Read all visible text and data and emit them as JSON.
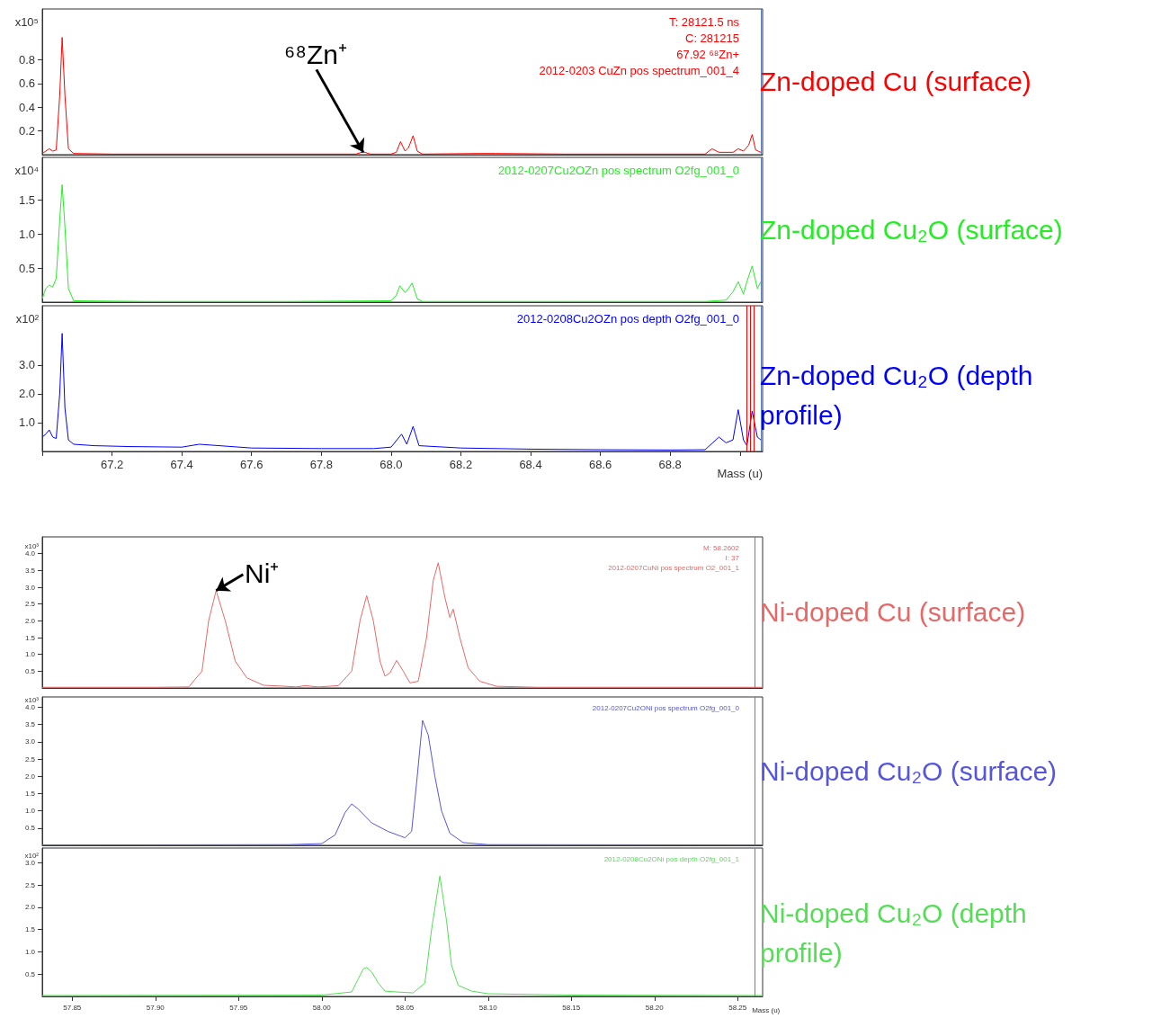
{
  "chart_data": [
    {
      "type": "line",
      "title": "Zn-doped Cu (surface)",
      "ylabel": "x10⁵",
      "tick_labels": "y",
      "xlim": [
        67.0,
        69.065
      ],
      "xticks": [
        67,
        67.2,
        67.4,
        67.6,
        67.8,
        68,
        68.2,
        68.4,
        68.6,
        68.8,
        69
      ],
      "ylim": [
        0,
        1.23
      ],
      "yticks": [
        0.2,
        0.4,
        0.6,
        0.8
      ],
      "x": [
        67.0,
        67.01,
        67.02,
        67.03,
        67.04,
        67.05,
        67.057,
        67.065,
        67.075,
        67.09,
        67.2,
        67.5,
        67.9,
        67.915,
        67.925,
        67.94,
        68.0,
        68.015,
        68.027,
        68.04,
        68.05,
        68.063,
        68.075,
        68.09,
        68.25,
        68.3,
        68.5,
        68.9,
        68.92,
        68.94,
        68.98,
        68.995,
        69.01,
        69.025,
        69.035,
        69.045,
        69.06
      ],
      "series": [
        {
          "name": "2012-0203 CuZn pos spectrum_001_4",
          "color": "#ff0000",
          "values": [
            0.01,
            0.03,
            0.05,
            0.03,
            0.04,
            0.5,
            0.99,
            0.5,
            0.05,
            0.01,
            0.005,
            0.005,
            0.005,
            0.02,
            0.02,
            0.005,
            0.005,
            0.02,
            0.11,
            0.03,
            0.06,
            0.16,
            0.03,
            0.005,
            0.01,
            0.01,
            0.005,
            0.005,
            0.05,
            0.02,
            0.02,
            0.05,
            0.03,
            0.08,
            0.17,
            0.04,
            0.02
          ]
        }
      ],
      "annotations": [
        "T: 28121.5 ns",
        "C: 281215",
        "67.92 ⁶⁸Zn+",
        {
          "text": "⁶⁸Zn⁺",
          "x": 67.92,
          "y": 0.02
        }
      ],
      "ref_lines": [
        {
          "axis": "x",
          "value": 69.059,
          "color": "#5b7fbf"
        }
      ]
    },
    {
      "type": "line",
      "title": "Zn-doped Cu₂O (surface)",
      "ylabel": "x10⁴",
      "tick_labels": "y",
      "xlim": [
        67.0,
        69.065
      ],
      "xticks": [
        67,
        67.2,
        67.4,
        67.6,
        67.8,
        68,
        68.2,
        68.4,
        68.6,
        68.8,
        69
      ],
      "ylim": [
        0,
        2.12
      ],
      "yticks": [
        0.5,
        {
          "value": 1.0,
          "label": "1.0"
        },
        1.5
      ],
      "x": [
        67.0,
        67.01,
        67.02,
        67.03,
        67.04,
        67.05,
        67.057,
        67.065,
        67.075,
        67.09,
        67.3,
        67.7,
        68.0,
        68.015,
        68.025,
        68.04,
        68.05,
        68.06,
        68.075,
        68.09,
        68.5,
        68.9,
        68.96,
        68.98,
        68.995,
        69.01,
        69.02,
        69.035,
        69.05,
        69.06
      ],
      "series": [
        {
          "name": "2012-0207Cu2OZn pos spectrum O2fg_001_0",
          "color": "#22ee22",
          "values": [
            0.05,
            0.2,
            0.25,
            0.22,
            0.35,
            1.2,
            1.72,
            1.1,
            0.2,
            0.02,
            0.01,
            0.01,
            0.02,
            0.1,
            0.24,
            0.14,
            0.2,
            0.28,
            0.05,
            0.01,
            0.01,
            0.01,
            0.03,
            0.15,
            0.3,
            0.12,
            0.3,
            0.53,
            0.2,
            0.3
          ]
        }
      ],
      "ref_lines": [
        {
          "axis": "x",
          "value": 69.059,
          "color": "#5b7fbf"
        }
      ]
    },
    {
      "type": "line",
      "title": "Zn-doped Cu₂O (depth profile)",
      "ylabel": "x10²",
      "xlabel": "Mass (u)",
      "xlim": [
        67.0,
        69.065
      ],
      "xticks": [
        {
          "value": 67.0,
          "label": null
        },
        67.2,
        67.4,
        67.6,
        67.8,
        {
          "value": 68.0,
          "label": "68.0"
        },
        68.2,
        68.4,
        68.6,
        68.8,
        {
          "value": 69.0,
          "label": null
        }
      ],
      "ylim": [
        0,
        5.06
      ],
      "yticks": [
        {
          "value": 1.0,
          "label": "1.0"
        },
        {
          "value": 2.0,
          "label": "2.0"
        },
        {
          "value": 3.0,
          "label": "3.0"
        }
      ],
      "x": [
        67.0,
        67.01,
        67.02,
        67.03,
        67.04,
        67.05,
        67.057,
        67.065,
        67.075,
        67.09,
        67.15,
        67.25,
        67.4,
        67.45,
        67.6,
        67.8,
        67.95,
        68.0,
        68.03,
        68.045,
        68.063,
        68.08,
        68.2,
        68.4,
        68.6,
        68.8,
        68.9,
        68.94,
        68.96,
        68.98,
        68.995,
        69.01,
        69.02,
        69.035,
        69.05,
        69.06
      ],
      "series": [
        {
          "name": "2012-0208Cu2OZn pos depth O2fg_001_0",
          "color": "#0000ff",
          "values": [
            0.5,
            0.6,
            0.75,
            0.5,
            0.45,
            2.0,
            4.1,
            1.5,
            0.4,
            0.25,
            0.2,
            0.17,
            0.15,
            0.25,
            0.12,
            0.1,
            0.1,
            0.15,
            0.6,
            0.25,
            0.87,
            0.2,
            0.12,
            0.08,
            0.06,
            0.05,
            0.06,
            0.5,
            0.3,
            0.4,
            1.45,
            0.4,
            0.2,
            1.4,
            0.5,
            0.4
          ]
        }
      ],
      "ref_lines": [
        {
          "axis": "x",
          "value": 69.015,
          "color": "#ff0000"
        },
        {
          "axis": "x",
          "value": 69.028,
          "color": "#ff0000"
        },
        {
          "axis": "x",
          "value": 69.041,
          "color": "#ff0000"
        },
        {
          "axis": "x",
          "value": 69.059,
          "color": "#5b7fbf"
        }
      ]
    },
    {
      "type": "line",
      "title": "Ni-doped Cu (surface)",
      "ylabel": "x10³",
      "tick_labels": "y",
      "xlim": [
        57.832,
        58.265
      ],
      "xticks": [
        57.85,
        57.9,
        57.95,
        58,
        58.05,
        58.1,
        58.15,
        58.2,
        58.25
      ],
      "ylim": [
        0,
        4.5
      ],
      "yticks": [
        0.5,
        {
          "value": 1.0,
          "label": "1.0"
        },
        1.5,
        {
          "value": 2.0,
          "label": "2.0"
        },
        2.5,
        {
          "value": 3.0,
          "label": "3.0"
        },
        3.5,
        {
          "value": 4.0,
          "label": "4.0"
        }
      ],
      "x": [
        57.832,
        57.9,
        57.92,
        57.928,
        57.932,
        57.9365,
        57.942,
        57.948,
        57.955,
        57.965,
        57.978,
        57.985,
        57.99,
        57.998,
        58.01,
        58.018,
        58.023,
        58.027,
        58.031,
        58.035,
        58.038,
        58.041,
        58.045,
        58.049,
        58.053,
        58.058,
        58.063,
        58.067,
        58.07,
        58.074,
        58.077,
        58.079,
        58.083,
        58.088,
        58.095,
        58.105,
        58.13,
        58.2,
        58.265
      ],
      "series": [
        {
          "name": "2012-0207CuNi pos spectrum O2_001_1",
          "color": "#e86868",
          "values": [
            0.02,
            0.02,
            0.03,
            0.5,
            2.0,
            2.9,
            2.0,
            0.8,
            0.3,
            0.08,
            0.05,
            0.03,
            0.07,
            0.03,
            0.07,
            0.5,
            2.0,
            2.75,
            2.0,
            0.8,
            0.35,
            0.45,
            0.82,
            0.5,
            0.15,
            0.2,
            1.5,
            3.2,
            3.73,
            2.7,
            2.1,
            2.35,
            1.5,
            0.6,
            0.2,
            0.05,
            0.02,
            0.02,
            0.02
          ]
        }
      ],
      "annotations": [
        "M: 58.2602",
        "I: 37",
        {
          "text": "Ni⁺",
          "x": 57.9365,
          "y": 2.9
        }
      ],
      "ref_lines": [
        {
          "axis": "x",
          "value": 58.261,
          "color": "#5b7fbf"
        }
      ]
    },
    {
      "type": "line",
      "title": "Ni-doped Cu₂O (surface)",
      "ylabel": "x10³",
      "tick_labels": "y",
      "xlim": [
        57.832,
        58.265
      ],
      "xticks": [
        57.85,
        57.9,
        57.95,
        58,
        58.05,
        58.1,
        58.15,
        58.2,
        58.25
      ],
      "ylim": [
        0,
        4.3
      ],
      "yticks": [
        0.5,
        {
          "value": 1.0,
          "label": "1.0"
        },
        1.5,
        {
          "value": 2.0,
          "label": "2.0"
        },
        2.5,
        {
          "value": 3.0,
          "label": "3.0"
        },
        3.5,
        {
          "value": 4.0,
          "label": "4.0"
        }
      ],
      "x": [
        57.832,
        57.98,
        58.0,
        58.008,
        58.014,
        58.018,
        58.022,
        58.03,
        58.04,
        58.05,
        58.054,
        58.057,
        58.0606,
        58.064,
        58.068,
        58.072,
        58.077,
        58.085,
        58.1,
        58.265
      ],
      "series": [
        {
          "name": "2012-0207Cu2ONi pos spectrum O2fg_001_0",
          "color": "#5555dd",
          "values": [
            0.01,
            0.02,
            0.05,
            0.3,
            0.95,
            1.2,
            1.05,
            0.65,
            0.4,
            0.22,
            0.4,
            1.8,
            3.62,
            3.2,
            2.0,
            1.0,
            0.35,
            0.08,
            0.02,
            0.01
          ]
        }
      ],
      "ref_lines": [
        {
          "axis": "x",
          "value": 58.261,
          "color": "#5b7fbf"
        }
      ]
    },
    {
      "type": "line",
      "title": "Ni-doped Cu₂O (depth profile)",
      "ylabel": "x10²",
      "xlabel": "Mass (u)",
      "xlim": [
        57.832,
        58.265
      ],
      "xticks": [
        57.85,
        {
          "value": 57.9,
          "label": "57.90"
        },
        57.95,
        {
          "value": 58.0,
          "label": "58.00"
        },
        58.05,
        {
          "value": 58.1,
          "label": "58.10"
        },
        58.15,
        {
          "value": 58.2,
          "label": "58.20"
        },
        58.25
      ],
      "ylim": [
        0,
        3.33
      ],
      "yticks": [
        0.5,
        {
          "value": 1.0,
          "label": "1.0"
        },
        1.5,
        {
          "value": 2.0,
          "label": "2.0"
        },
        2.5,
        {
          "value": 3.0,
          "label": "3.0"
        }
      ],
      "x": [
        57.832,
        58.0,
        58.018,
        58.022,
        58.025,
        58.027,
        58.03,
        58.034,
        58.038,
        58.045,
        58.055,
        58.062,
        58.066,
        58.071,
        58.075,
        58.078,
        58.082,
        58.09,
        58.1,
        58.15,
        58.265
      ],
      "series": [
        {
          "name": "2012-0208Cu2ONi pos depth O2fg_001_1",
          "color": "#55dd55",
          "values": [
            0.02,
            0.03,
            0.1,
            0.4,
            0.62,
            0.65,
            0.55,
            0.3,
            0.12,
            0.1,
            0.08,
            0.3,
            1.5,
            2.7,
            1.7,
            0.7,
            0.25,
            0.12,
            0.06,
            0.03,
            0.02
          ]
        }
      ],
      "ref_lines": [
        {
          "axis": "x",
          "value": 58.261,
          "color": "#5b7fbf"
        }
      ]
    }
  ]
}
